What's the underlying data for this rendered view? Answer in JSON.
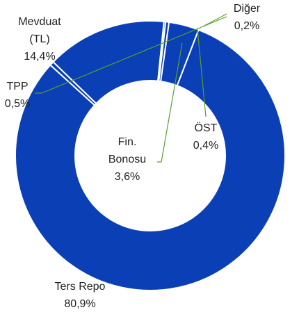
{
  "chart_data": {
    "type": "donut",
    "categories": [
      "Ters Repo",
      "TPP",
      "Mevduat (TL)",
      "Diğer",
      "ÖST",
      "Fin. Bonosu"
    ],
    "values": [
      80.9,
      0.5,
      14.4,
      0.2,
      0.4,
      3.6
    ],
    "value_labels": [
      "80,9%",
      "0,5%",
      "14,4%",
      "0,2%",
      "0,4%",
      "3,6%"
    ],
    "color": "#0a3fb5"
  }
}
